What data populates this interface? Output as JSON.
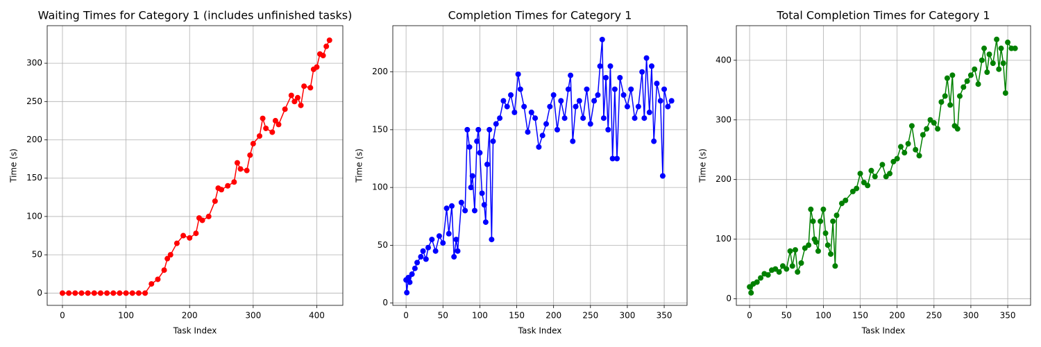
{
  "chart_data": [
    {
      "type": "line",
      "title": "Waiting Times for Category 1 (includes unfinished tasks)",
      "x_label": "Task Index",
      "y_label": "Time (s)",
      "color": "#ff0000",
      "grid": true,
      "x": [
        0,
        10,
        20,
        30,
        40,
        50,
        60,
        70,
        80,
        90,
        100,
        110,
        120,
        130,
        140,
        150,
        160,
        165,
        170,
        180,
        190,
        200,
        210,
        215,
        220,
        230,
        240,
        245,
        250,
        260,
        270,
        275,
        280,
        290,
        295,
        300,
        310,
        315,
        320,
        330,
        335,
        340,
        350,
        360,
        365,
        370,
        375,
        380,
        390,
        395,
        400,
        405,
        410,
        415,
        420
      ],
      "values": [
        0,
        0,
        0,
        0,
        0,
        0,
        0,
        0,
        0,
        0,
        0,
        0,
        0,
        0,
        12,
        18,
        30,
        45,
        50,
        65,
        75,
        72,
        78,
        98,
        95,
        100,
        120,
        137,
        135,
        140,
        145,
        170,
        162,
        160,
        180,
        195,
        205,
        228,
        215,
        210,
        225,
        220,
        240,
        258,
        250,
        255,
        245,
        270,
        268,
        292,
        295,
        312,
        310,
        322,
        330
      ],
      "xlim": [
        -24,
        441
      ],
      "ylim": [
        -16,
        349
      ],
      "xticks": [
        0,
        100,
        200,
        300,
        400
      ],
      "yticks": [
        0,
        50,
        100,
        150,
        200,
        250,
        300
      ]
    },
    {
      "type": "line",
      "title": "Completion Times for Category 1",
      "x_label": "Task Index",
      "y_label": "Time (s)",
      "color": "#0000ff",
      "grid": true,
      "x": [
        0,
        1,
        3,
        5,
        8,
        12,
        15,
        20,
        23,
        27,
        30,
        35,
        40,
        45,
        50,
        55,
        58,
        62,
        65,
        68,
        70,
        75,
        80,
        83,
        86,
        88,
        90,
        93,
        96,
        98,
        100,
        103,
        106,
        108,
        110,
        113,
        116,
        118,
        122,
        127,
        132,
        137,
        142,
        147,
        152,
        155,
        160,
        165,
        170,
        175,
        180,
        185,
        190,
        195,
        200,
        205,
        210,
        215,
        220,
        223,
        226,
        230,
        235,
        240,
        245,
        250,
        255,
        260,
        263,
        266,
        268,
        271,
        274,
        277,
        280,
        283,
        286,
        290,
        295,
        300,
        305,
        310,
        315,
        320,
        323,
        326,
        330,
        333,
        336,
        340,
        345,
        348,
        350,
        355,
        360
      ],
      "values": [
        20,
        9,
        22,
        18,
        25,
        30,
        35,
        40,
        45,
        38,
        48,
        55,
        45,
        58,
        52,
        82,
        60,
        84,
        40,
        55,
        45,
        87,
        80,
        150,
        135,
        100,
        110,
        80,
        140,
        150,
        130,
        95,
        85,
        70,
        120,
        150,
        55,
        140,
        155,
        160,
        175,
        170,
        180,
        165,
        198,
        185,
        170,
        148,
        165,
        160,
        135,
        145,
        155,
        170,
        180,
        150,
        175,
        160,
        185,
        197,
        140,
        170,
        175,
        160,
        185,
        155,
        175,
        180,
        205,
        228,
        160,
        195,
        150,
        205,
        125,
        185,
        125,
        195,
        180,
        170,
        185,
        160,
        170,
        200,
        160,
        212,
        165,
        205,
        140,
        190,
        175,
        110,
        185,
        170,
        175
      ],
      "xlim": [
        -18,
        381
      ],
      "ylim": [
        -2,
        240
      ],
      "xticks": [
        0,
        50,
        100,
        150,
        200,
        250,
        300,
        350
      ],
      "yticks": [
        0,
        50,
        100,
        150,
        200
      ]
    },
    {
      "type": "line",
      "title": "Total Completion Times for Category 1",
      "x_label": "Task Index",
      "y_label": "Time (s)",
      "color": "#008000",
      "grid": true,
      "x": [
        0,
        2,
        5,
        10,
        15,
        20,
        25,
        30,
        35,
        40,
        45,
        50,
        55,
        58,
        62,
        65,
        70,
        75,
        80,
        83,
        86,
        88,
        90,
        93,
        96,
        100,
        103,
        106,
        110,
        113,
        116,
        118,
        125,
        130,
        140,
        145,
        150,
        155,
        160,
        165,
        170,
        180,
        185,
        190,
        195,
        200,
        205,
        210,
        215,
        220,
        225,
        230,
        235,
        240,
        245,
        250,
        255,
        260,
        265,
        268,
        272,
        275,
        278,
        282,
        285,
        290,
        295,
        300,
        305,
        310,
        315,
        318,
        322,
        325,
        330,
        335,
        338,
        341,
        344,
        347,
        350,
        355,
        360
      ],
      "values": [
        20,
        10,
        25,
        28,
        35,
        42,
        40,
        48,
        50,
        45,
        55,
        50,
        80,
        55,
        82,
        45,
        60,
        85,
        90,
        150,
        130,
        100,
        95,
        80,
        130,
        150,
        110,
        90,
        75,
        130,
        55,
        140,
        160,
        165,
        180,
        185,
        210,
        195,
        190,
        215,
        205,
        225,
        205,
        210,
        230,
        235,
        255,
        245,
        260,
        290,
        250,
        240,
        275,
        285,
        300,
        295,
        285,
        330,
        340,
        370,
        325,
        375,
        290,
        285,
        340,
        355,
        365,
        375,
        385,
        360,
        400,
        420,
        380,
        410,
        395,
        435,
        385,
        420,
        395,
        345,
        430,
        420,
        420
      ],
      "xlim": [
        -18,
        381
      ],
      "ylim": [
        -11,
        458
      ],
      "xticks": [
        0,
        50,
        100,
        150,
        200,
        250,
        300,
        350
      ],
      "yticks": [
        0,
        100,
        200,
        300,
        400
      ]
    }
  ]
}
